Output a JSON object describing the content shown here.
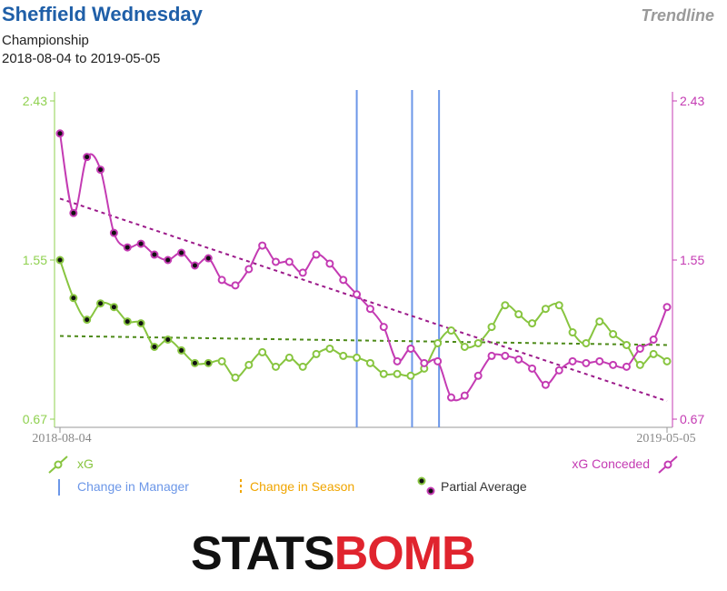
{
  "header": {
    "title": "Sheffield Wednesday",
    "competition": "Championship",
    "date_range": "2018-08-04 to 2019-05-05",
    "view": "Trendline"
  },
  "colors": {
    "xg": "#88c540",
    "xg_conceded": "#c43bb3",
    "manager_change": "#6c97e8",
    "season_change": "#f0a500",
    "xg_trend": "#4d8a18",
    "xgc_trend": "#9c1a8a",
    "partial_dot": "#111111",
    "left_axis": "#8fd14f",
    "right_axis": "#c43bb3"
  },
  "legend": {
    "xg": "xG",
    "xg_conceded": "xG Conceded",
    "manager": "Change in Manager",
    "season": "Change in Season",
    "partial": "Partial Average"
  },
  "logo": {
    "text": "STATSBOMB"
  },
  "chart_data": {
    "type": "line",
    "x_start_label": "2018-08-04",
    "x_end_label": "2019-05-05",
    "y_left": {
      "ticks": [
        0.67,
        1.55,
        2.43
      ],
      "ylim": [
        0.67,
        2.43
      ]
    },
    "y_right": {
      "ticks": [
        0.67,
        1.55,
        2.43
      ],
      "ylim": [
        0.67,
        2.43
      ]
    },
    "grid": false,
    "manager_changes_at_match": [
      22.0,
      26.1,
      28.1
    ],
    "partial_average_matches": 12,
    "series": [
      {
        "name": "xG",
        "values": [
          1.55,
          1.34,
          1.22,
          1.31,
          1.29,
          1.21,
          1.2,
          1.07,
          1.11,
          1.05,
          0.98,
          0.98,
          0.99,
          0.9,
          0.97,
          1.04,
          0.96,
          1.01,
          0.96,
          1.03,
          1.06,
          1.02,
          1.01,
          0.98,
          0.92,
          0.92,
          0.91,
          0.95,
          1.09,
          1.16,
          1.07,
          1.09,
          1.18,
          1.3,
          1.25,
          1.2,
          1.28,
          1.3,
          1.15,
          1.09,
          1.21,
          1.14,
          1.08,
          0.97,
          1.03,
          0.99
        ],
        "trend": [
          1.13,
          1.08
        ]
      },
      {
        "name": "xG Conceded",
        "values": [
          2.25,
          1.81,
          2.12,
          2.05,
          1.7,
          1.62,
          1.64,
          1.58,
          1.55,
          1.59,
          1.52,
          1.56,
          1.44,
          1.41,
          1.5,
          1.63,
          1.54,
          1.54,
          1.48,
          1.58,
          1.53,
          1.44,
          1.36,
          1.28,
          1.18,
          0.99,
          1.06,
          0.98,
          0.99,
          0.79,
          0.8,
          0.91,
          1.02,
          1.02,
          1.0,
          0.95,
          0.86,
          0.94,
          0.99,
          0.98,
          0.99,
          0.97,
          0.96,
          1.06,
          1.11,
          1.29
        ],
        "trend": [
          1.89,
          0.77
        ]
      }
    ]
  }
}
